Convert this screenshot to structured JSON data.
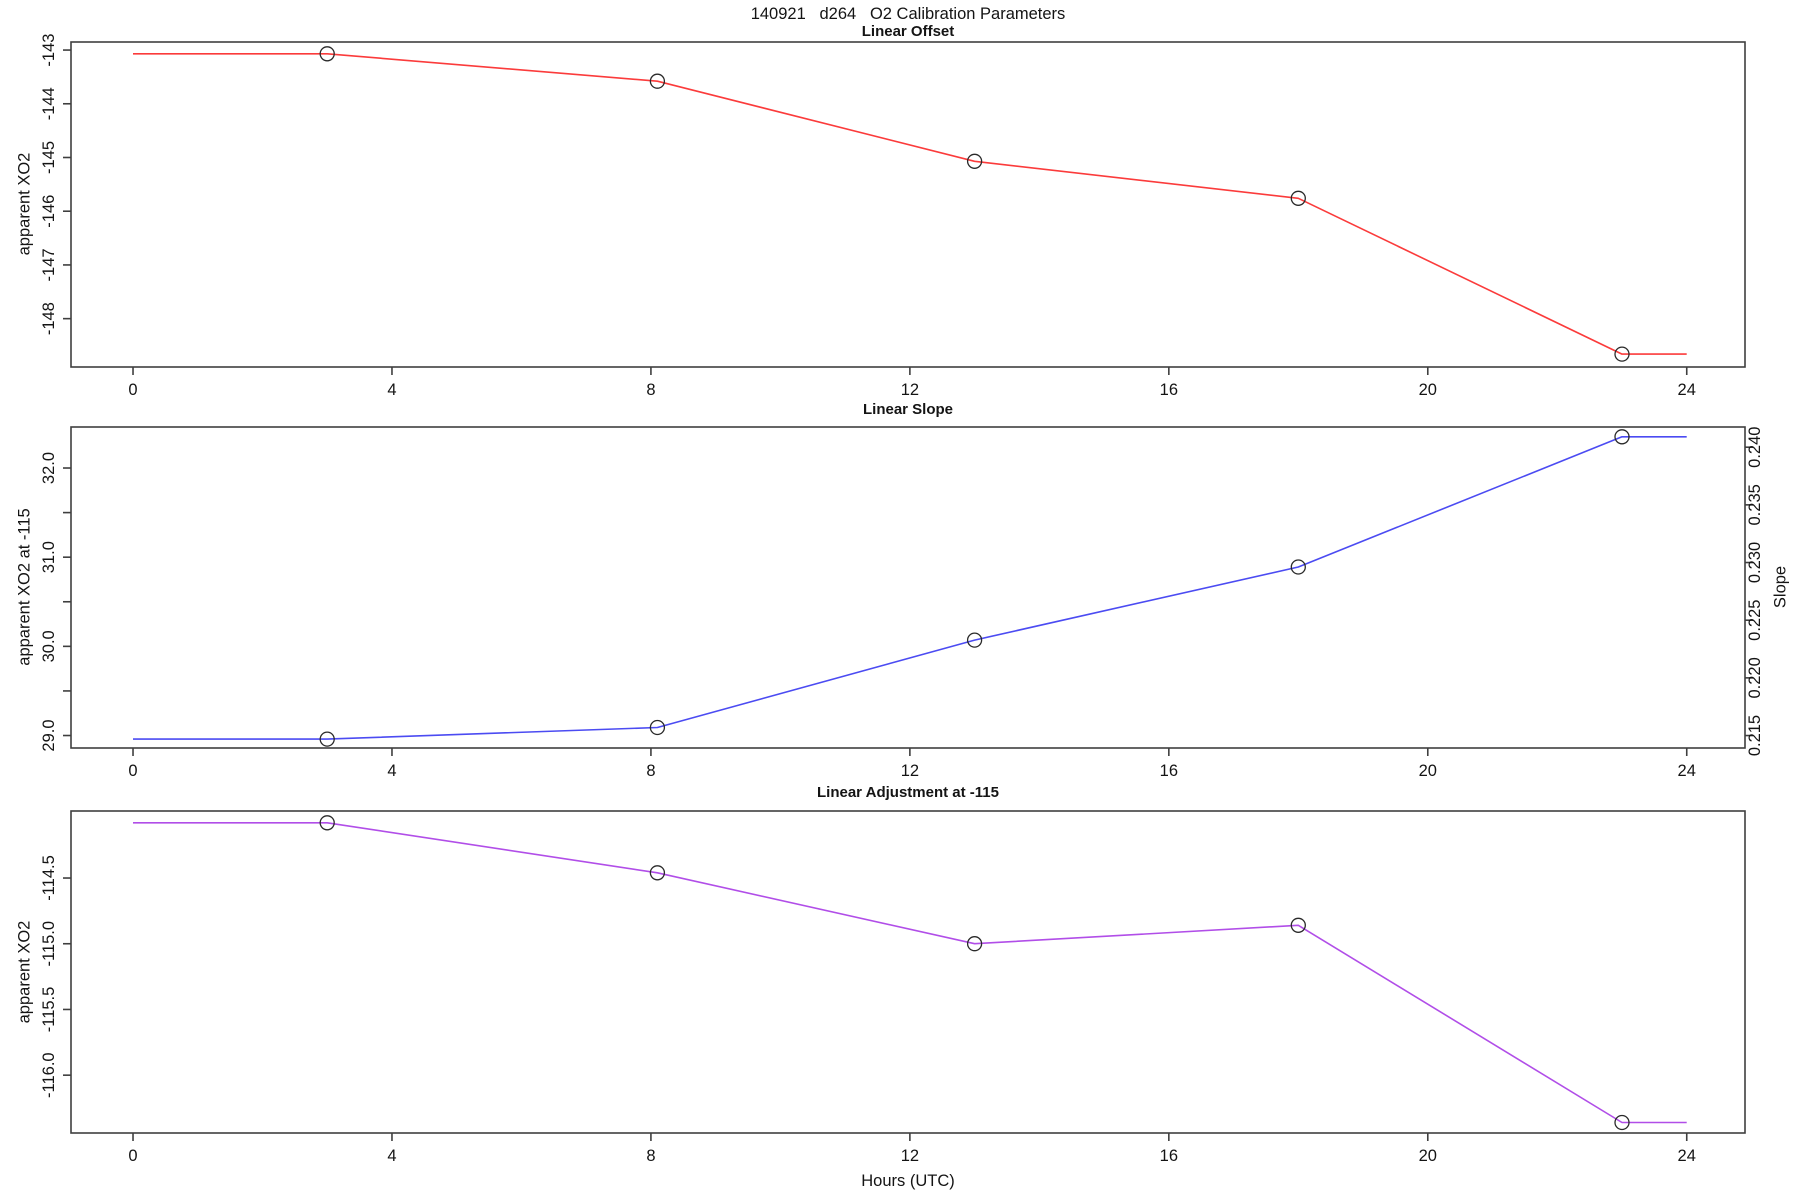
{
  "page_title": "140921   d264   O2 Calibration Parameters",
  "x_axis_label": "Hours (UTC)",
  "colors": {
    "axis": "#3f3f3f",
    "text": "#141414",
    "marker_stroke": "#2a2a2a"
  },
  "chart_data": [
    {
      "type": "line",
      "title": "Linear Offset",
      "ylabel": "apparent XO2",
      "line_color": "#fb3b3b",
      "xlim": [
        -0.958,
        24.9
      ],
      "xticks": [
        0,
        4,
        8,
        12,
        16,
        20,
        24
      ],
      "ylim": [
        -148.9,
        -142.85
      ],
      "yticks": [
        -148,
        -147,
        -146,
        -145,
        -144,
        -143
      ],
      "ytick_labels": [
        "-148",
        "-147",
        "-146",
        "-145",
        "-144",
        "-143"
      ],
      "yticks_minor": [],
      "x": [
        0,
        3,
        8.1,
        13,
        18,
        23,
        24
      ],
      "y": [
        -143.07,
        -143.07,
        -143.58,
        -145.07,
        -145.76,
        -148.66,
        -148.66
      ],
      "marker_idx": [
        1,
        2,
        3,
        4,
        5
      ]
    },
    {
      "type": "line",
      "title": "Linear Slope",
      "ylabel": "apparent XO2 at -115",
      "y2label": "Slope",
      "line_color": "#4b4bf2",
      "xlim": [
        -0.958,
        24.9
      ],
      "xticks": [
        0,
        4,
        8,
        12,
        16,
        20,
        24
      ],
      "ylim": [
        28.86,
        32.46
      ],
      "yticks": [
        29.0,
        30.0,
        31.0,
        32.0
      ],
      "ytick_labels": [
        "29.0",
        "30.0",
        "31.0",
        "32.0"
      ],
      "yticks_minor": [
        29.5,
        30.5,
        31.5
      ],
      "y2lim": [
        0.21392,
        0.24175
      ],
      "y2ticks": [
        0.215,
        0.22,
        0.225,
        0.23,
        0.235,
        0.24
      ],
      "y2tick_labels": [
        "0.215",
        "0.220",
        "0.225",
        "0.230",
        "0.235",
        "0.240"
      ],
      "x": [
        0,
        3,
        8.1,
        13,
        18,
        23,
        24
      ],
      "y": [
        28.96,
        28.96,
        29.09,
        30.07,
        30.89,
        32.35,
        32.35
      ],
      "marker_idx": [
        1,
        2,
        3,
        4,
        5
      ]
    },
    {
      "type": "line",
      "title": "Linear Adjustment at -115",
      "ylabel": "apparent XO2",
      "line_color": "#b14ee8",
      "xlim": [
        -0.958,
        24.9
      ],
      "xticks": [
        0,
        4,
        8,
        12,
        16,
        20,
        24
      ],
      "ylim": [
        -116.44,
        -113.99
      ],
      "yticks": [
        -116.0,
        -115.5,
        -115.0,
        -114.5
      ],
      "ytick_labels": [
        "-116.0",
        "-115.5",
        "-115.0",
        "-114.5"
      ],
      "yticks_minor": [],
      "x": [
        0,
        3,
        8.1,
        13,
        18,
        23,
        24
      ],
      "y": [
        -114.08,
        -114.08,
        -114.46,
        -115.0,
        -114.86,
        -116.36,
        -116.36
      ],
      "marker_idx": [
        1,
        2,
        3,
        4,
        5
      ]
    }
  ]
}
